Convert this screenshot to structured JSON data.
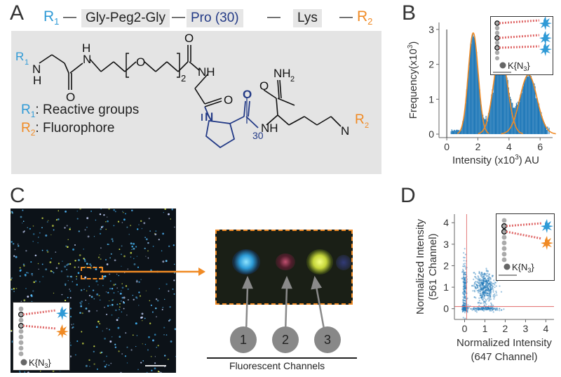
{
  "panel_labels": {
    "a": "A",
    "b": "B",
    "c": "C",
    "d": "D"
  },
  "sequence": {
    "r1": "R",
    "r1_sub": "1",
    "segments": [
      "Gly-Peg2-Gly",
      "Pro (30)",
      "Lys"
    ],
    "r2": "R",
    "r2_sub": "2",
    "dash": "—"
  },
  "structure": {
    "r1": "R",
    "r1_sub": "1",
    "n": "N",
    "h": "H",
    "o": "O",
    "sub2": "2",
    "nh": "NH",
    "nh2": "NH",
    "nh2_sub": "2",
    "sub30": "30",
    "r2": "R",
    "r2_sub": "2"
  },
  "legend": {
    "r1_label": "R",
    "r1_sub": "1",
    "r1_text": ": Reactive groups",
    "r2_label": "R",
    "r2_sub": "2",
    "r2_text": ": Fluorophore"
  },
  "inset_label": "K{N",
  "inset_label_sub": "3",
  "inset_label_end": "}",
  "panel_c": {
    "channels": [
      "1",
      "2",
      "3"
    ],
    "caption": "Fluorescent Channels"
  },
  "colors": {
    "blue": "#2f9ad6",
    "orange": "#f08a24",
    "navy": "#233a86",
    "hist": "#1f78b8",
    "fit": "#f08a24"
  },
  "chart_data": [
    {
      "type": "area",
      "xlabel": "Intensity (x10",
      "xlabel_sup": "3",
      "xlabel_end": ") AU",
      "ylabel": "Frequency(x10",
      "ylabel_sup": "3",
      "ylabel_end": ")",
      "xlim": [
        -0.5,
        6.8
      ],
      "ylim": [
        -0.1,
        3.2
      ],
      "xticks": [
        0,
        2,
        4,
        6
      ],
      "yticks": [
        0,
        1,
        2,
        3
      ],
      "fit_peaks": [
        {
          "center": 1.7,
          "height": 2.9,
          "width": 0.32
        },
        {
          "center": 3.45,
          "height": 2.35,
          "width": 0.45
        },
        {
          "center": 5.25,
          "height": 1.7,
          "width": 0.55
        }
      ]
    },
    {
      "type": "scatter",
      "xlabel": "Normalized Intensity",
      "xlabel2": "(647 Channel)",
      "ylabel": "Normalized Intensity",
      "ylabel2": "(561 Channel)",
      "xlim": [
        -0.5,
        4.4
      ],
      "ylim": [
        -0.5,
        4.4
      ],
      "xticks": [
        0,
        1,
        2,
        3,
        4
      ],
      "yticks": [
        0,
        1,
        2,
        3,
        4
      ],
      "threshold_x": 0.1,
      "threshold_y": 0.1,
      "clusters": [
        {
          "x": 0.0,
          "y": 1.0,
          "spread_x": 0.05,
          "spread_y": 0.6
        },
        {
          "x": 1.0,
          "y": 0.0,
          "spread_x": 0.35,
          "spread_y": 0.05
        },
        {
          "x": 1.0,
          "y": 1.0,
          "spread_x": 0.25,
          "spread_y": 0.35
        },
        {
          "x": 0.0,
          "y": 0.0,
          "spread_x": 0.08,
          "spread_y": 0.08
        }
      ]
    }
  ]
}
